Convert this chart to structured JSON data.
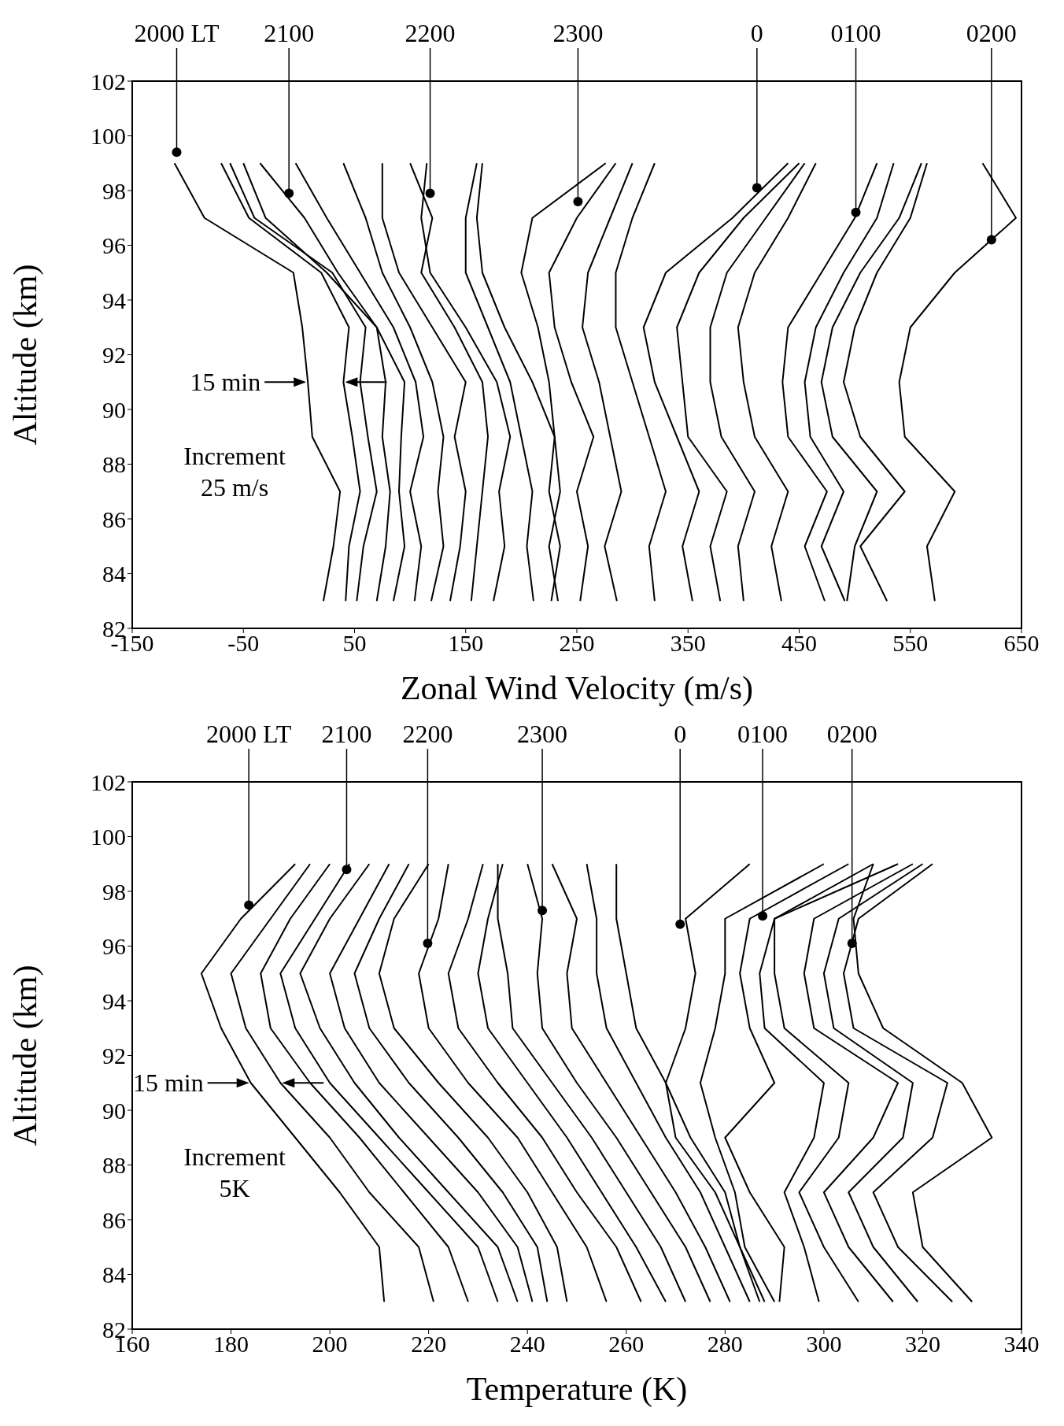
{
  "chart_data": [
    {
      "type": "line",
      "xlabel": "Zonal Wind Velocity (m/s)",
      "ylabel": "Altitude (km)",
      "xlim": [
        -150,
        650
      ],
      "xticks": [
        -150,
        -50,
        50,
        150,
        250,
        350,
        450,
        550,
        650
      ],
      "ylim": [
        82,
        102
      ],
      "yticks": [
        82,
        84,
        86,
        88,
        90,
        92,
        94,
        96,
        98,
        100,
        102
      ],
      "series": [
        {
          "color": "#000000",
          "x": [
            22,
            31,
            37,
            12,
            8,
            3,
            -5,
            -85,
            -112
          ],
          "values": [
            83,
            85,
            87,
            89,
            91,
            93,
            95,
            97,
            99
          ]
        },
        {
          "color": "#000000",
          "x": [
            42,
            45,
            55,
            48,
            40,
            45,
            20,
            -45,
            -70
          ],
          "values": [
            83,
            85,
            87,
            89,
            91,
            93,
            95,
            97,
            99
          ]
        },
        {
          "color": "#000000",
          "x": [
            52,
            58,
            70,
            62,
            55,
            60,
            30,
            -40,
            -62
          ],
          "values": [
            83,
            85,
            87,
            89,
            91,
            93,
            95,
            97,
            99
          ]
        },
        {
          "color": "#000000",
          "x": [
            70,
            78,
            82,
            75,
            78,
            70,
            25,
            -30,
            -50
          ],
          "values": [
            83,
            85,
            87,
            89,
            91,
            93,
            95,
            97,
            99
          ]
        },
        {
          "color": "#000000",
          "x": [
            85,
            95,
            90,
            92,
            95,
            70,
            35,
            5,
            -35
          ],
          "values": [
            83,
            85,
            87,
            89,
            91,
            93,
            95,
            97,
            99
          ]
        },
        {
          "color": "#000000",
          "x": [
            104,
            110,
            100,
            112,
            105,
            85,
            55,
            25,
            -3
          ],
          "values": [
            83,
            85,
            87,
            89,
            91,
            93,
            95,
            97,
            99
          ]
        },
        {
          "color": "#000000",
          "x": [
            119,
            130,
            125,
            130,
            120,
            100,
            75,
            60,
            40
          ],
          "values": [
            83,
            85,
            87,
            89,
            91,
            93,
            95,
            97,
            99
          ]
        },
        {
          "color": "#000000",
          "x": [
            136,
            145,
            150,
            140,
            150,
            120,
            90,
            75,
            75
          ],
          "values": [
            83,
            85,
            87,
            89,
            91,
            93,
            95,
            97,
            99
          ]
        },
        {
          "color": "#000000",
          "x": [
            155,
            160,
            165,
            170,
            165,
            140,
            110,
            120,
            100
          ],
          "values": [
            83,
            85,
            87,
            89,
            91,
            93,
            95,
            97,
            99
          ]
        },
        {
          "color": "#000000",
          "x": [
            175,
            185,
            180,
            190,
            178,
            150,
            118,
            110,
            115
          ],
          "values": [
            83,
            85,
            87,
            89,
            91,
            93,
            95,
            97,
            99
          ]
        },
        {
          "color": "#000000",
          "x": [
            211,
            205,
            210,
            200,
            190,
            170,
            150,
            150,
            160
          ],
          "values": [
            83,
            85,
            87,
            89,
            91,
            93,
            95,
            97,
            99
          ]
        },
        {
          "color": "#000000",
          "x": [
            227,
            235,
            225,
            230,
            210,
            185,
            165,
            160,
            165
          ],
          "values": [
            83,
            85,
            87,
            89,
            91,
            93,
            95,
            97,
            99
          ]
        },
        {
          "color": "#000000",
          "x": [
            233,
            225,
            235,
            230,
            225,
            215,
            200,
            210,
            276
          ],
          "values": [
            83,
            85,
            87,
            89,
            91,
            93,
            95,
            97,
            99
          ]
        },
        {
          "color": "#000000",
          "x": [
            253,
            260,
            250,
            265,
            245,
            230,
            225,
            250,
            285
          ],
          "values": [
            83,
            85,
            87,
            89,
            91,
            93,
            95,
            97,
            99
          ]
        },
        {
          "color": "#000000",
          "x": [
            286,
            275,
            290,
            280,
            270,
            255,
            260,
            280,
            300
          ],
          "values": [
            83,
            85,
            87,
            89,
            91,
            93,
            95,
            97,
            99
          ]
        },
        {
          "color": "#000000",
          "x": [
            320,
            315,
            330,
            315,
            300,
            285,
            285,
            300,
            320
          ],
          "values": [
            83,
            85,
            87,
            89,
            91,
            93,
            95,
            97,
            99
          ]
        },
        {
          "color": "#000000",
          "x": [
            354,
            345,
            360,
            340,
            320,
            310,
            330,
            390,
            440
          ],
          "values": [
            83,
            85,
            87,
            89,
            91,
            93,
            95,
            97,
            99
          ]
        },
        {
          "color": "#000000",
          "x": [
            379,
            370,
            385,
            350,
            345,
            340,
            360,
            400,
            450
          ],
          "values": [
            83,
            85,
            87,
            89,
            91,
            93,
            95,
            97,
            99
          ]
        },
        {
          "color": "#000000",
          "x": [
            400,
            395,
            410,
            380,
            370,
            370,
            385,
            420,
            455
          ],
          "values": [
            83,
            85,
            87,
            89,
            91,
            93,
            95,
            97,
            99
          ]
        },
        {
          "color": "#000000",
          "x": [
            434,
            425,
            440,
            410,
            400,
            395,
            410,
            440,
            465
          ],
          "values": [
            83,
            85,
            87,
            89,
            91,
            93,
            95,
            97,
            99
          ]
        },
        {
          "color": "#000000",
          "x": [
            473,
            455,
            475,
            440,
            435,
            440,
            470,
            500,
            520
          ],
          "values": [
            83,
            85,
            87,
            89,
            91,
            93,
            95,
            97,
            99
          ]
        },
        {
          "color": "#000000",
          "x": [
            491,
            470,
            490,
            460,
            455,
            465,
            490,
            520,
            535
          ],
          "values": [
            83,
            85,
            87,
            89,
            91,
            93,
            95,
            97,
            99
          ]
        },
        {
          "color": "#000000",
          "x": [
            493,
            500,
            520,
            480,
            470,
            480,
            505,
            540,
            560
          ],
          "values": [
            83,
            85,
            87,
            89,
            91,
            93,
            95,
            97,
            99
          ]
        },
        {
          "color": "#000000",
          "x": [
            529,
            505,
            545,
            505,
            490,
            500,
            520,
            550,
            565
          ],
          "values": [
            83,
            85,
            87,
            89,
            91,
            93,
            95,
            97,
            99
          ]
        },
        {
          "color": "#000000",
          "x": [
            572,
            565,
            590,
            545,
            540,
            550,
            590,
            645,
            615
          ],
          "values": [
            83,
            85,
            87,
            89,
            91,
            93,
            95,
            97,
            99
          ]
        }
      ],
      "annotations": [
        {
          "text": "2000 LT",
          "x": -110,
          "y": 99.4
        },
        {
          "text": "2100",
          "x": -9,
          "y": 97.9
        },
        {
          "text": "2200",
          "x": 118,
          "y": 97.9
        },
        {
          "text": "2300",
          "x": 251,
          "y": 97.6
        },
        {
          "text": "0",
          "x": 412,
          "y": 98.1
        },
        {
          "text": "0100",
          "x": 501,
          "y": 97.2
        },
        {
          "text": "0200",
          "x": 623,
          "y": 96.2
        },
        "15 min",
        "Increment 25 m/s"
      ]
    },
    {
      "type": "line",
      "xlabel": "Temperature (K)",
      "ylabel": "Altitude (km)",
      "xlim": [
        160,
        340
      ],
      "xticks": [
        160,
        180,
        200,
        220,
        240,
        260,
        280,
        300,
        320,
        340
      ],
      "ylim": [
        82,
        102
      ],
      "yticks": [
        82,
        84,
        86,
        88,
        90,
        92,
        94,
        96,
        98,
        100,
        102
      ],
      "series": [
        {
          "color": "#000000",
          "x": [
            211,
            210,
            202,
            193,
            184,
            178,
            174,
            182,
            193
          ],
          "values": [
            83,
            85,
            87,
            89,
            91,
            93,
            95,
            97,
            99
          ]
        },
        {
          "color": "#000000",
          "x": [
            221,
            218,
            208,
            200,
            190,
            183,
            180,
            188,
            196
          ],
          "values": [
            83,
            85,
            87,
            89,
            91,
            93,
            95,
            97,
            99
          ]
        },
        {
          "color": "#000000",
          "x": [
            228,
            224,
            215,
            206,
            196,
            188,
            186,
            192,
            200
          ],
          "values": [
            83,
            85,
            87,
            89,
            91,
            93,
            95,
            97,
            99
          ]
        },
        {
          "color": "#000000",
          "x": [
            234,
            230,
            220,
            210,
            200,
            193,
            190,
            197,
            204
          ],
          "values": [
            83,
            85,
            87,
            89,
            91,
            93,
            95,
            97,
            99
          ]
        },
        {
          "color": "#000000",
          "x": [
            238,
            234,
            224,
            214,
            205,
            198,
            194,
            200,
            208
          ],
          "values": [
            83,
            85,
            87,
            89,
            91,
            93,
            95,
            97,
            99
          ]
        },
        {
          "color": "#000000",
          "x": [
            241,
            238,
            230,
            220,
            210,
            203,
            200,
            206,
            212
          ],
          "values": [
            83,
            85,
            87,
            89,
            91,
            93,
            95,
            97,
            99
          ]
        },
        {
          "color": "#000000",
          "x": [
            244,
            242,
            235,
            226,
            216,
            208,
            205,
            210,
            216
          ],
          "values": [
            83,
            85,
            87,
            89,
            91,
            93,
            95,
            97,
            99
          ]
        },
        {
          "color": "#000000",
          "x": [
            248,
            246,
            240,
            232,
            222,
            213,
            210,
            213,
            220
          ],
          "values": [
            83,
            85,
            87,
            89,
            91,
            93,
            95,
            97,
            99
          ]
        },
        {
          "color": "#000000",
          "x": [
            256,
            252,
            245,
            238,
            228,
            220,
            218,
            222,
            224
          ],
          "values": [
            83,
            85,
            87,
            89,
            91,
            93,
            95,
            97,
            99
          ]
        },
        {
          "color": "#000000",
          "x": [
            263,
            258,
            250,
            243,
            234,
            226,
            224,
            228,
            231
          ],
          "values": [
            83,
            85,
            87,
            89,
            91,
            93,
            95,
            97,
            99
          ]
        },
        {
          "color": "#000000",
          "x": [
            268,
            262,
            255,
            248,
            240,
            232,
            230,
            232,
            235
          ],
          "values": [
            83,
            85,
            87,
            89,
            91,
            93,
            95,
            97,
            99
          ]
        },
        {
          "color": "#000000",
          "x": [
            272,
            267,
            260,
            253,
            245,
            237,
            236,
            234,
            234
          ],
          "values": [
            83,
            85,
            87,
            89,
            91,
            93,
            95,
            97,
            99
          ]
        },
        {
          "color": "#000000",
          "x": [
            277,
            272,
            265,
            258,
            250,
            243,
            242,
            243,
            240
          ],
          "values": [
            83,
            85,
            87,
            89,
            91,
            93,
            95,
            97,
            99
          ]
        },
        {
          "color": "#000000",
          "x": [
            281,
            276,
            270,
            263,
            256,
            249,
            248,
            250,
            245
          ],
          "values": [
            83,
            85,
            87,
            89,
            91,
            93,
            95,
            97,
            99
          ]
        },
        {
          "color": "#000000",
          "x": [
            285,
            280,
            275,
            268,
            262,
            256,
            254,
            254,
            252
          ],
          "values": [
            83,
            85,
            87,
            89,
            91,
            93,
            95,
            97,
            99
          ]
        },
        {
          "color": "#000000",
          "x": [
            287,
            283,
            280,
            273,
            268,
            262,
            260,
            258,
            258
          ],
          "values": [
            83,
            85,
            87,
            89,
            91,
            93,
            95,
            97,
            99
          ]
        },
        {
          "color": "#000000",
          "x": [
            288,
            283,
            278,
            270,
            268,
            272,
            274,
            272,
            285
          ],
          "values": [
            83,
            85,
            87,
            89,
            91,
            93,
            95,
            97,
            99
          ]
        },
        {
          "color": "#000000",
          "x": [
            290,
            284,
            282,
            278,
            275,
            278,
            280,
            280,
            300
          ],
          "values": [
            83,
            85,
            87,
            89,
            91,
            93,
            95,
            97,
            99
          ]
        },
        {
          "color": "#000000",
          "x": [
            291,
            292,
            285,
            280,
            290,
            285,
            283,
            285,
            305
          ],
          "values": [
            83,
            85,
            87,
            89,
            91,
            93,
            95,
            97,
            99
          ]
        },
        {
          "color": "#000000",
          "x": [
            299,
            296,
            292,
            298,
            300,
            288,
            287,
            290,
            310
          ],
          "values": [
            83,
            85,
            87,
            89,
            91,
            93,
            95,
            97,
            99
          ]
        },
        {
          "color": "#000000",
          "x": [
            307,
            300,
            295,
            303,
            305,
            292,
            290,
            290,
            315
          ],
          "values": [
            83,
            85,
            87,
            89,
            91,
            93,
            95,
            97,
            99
          ]
        },
        {
          "color": "#000000",
          "x": [
            314,
            305,
            300,
            310,
            315,
            298,
            296,
            298,
            318
          ],
          "values": [
            83,
            85,
            87,
            89,
            91,
            93,
            95,
            97,
            99
          ]
        },
        {
          "color": "#000000",
          "x": [
            319,
            310,
            305,
            316,
            318,
            302,
            300,
            303,
            320
          ],
          "values": [
            83,
            85,
            87,
            89,
            91,
            93,
            95,
            97,
            99
          ]
        },
        {
          "color": "#000000",
          "x": [
            326,
            315,
            310,
            322,
            325,
            306,
            304,
            307,
            322
          ],
          "values": [
            83,
            85,
            87,
            89,
            91,
            93,
            95,
            97,
            99
          ]
        },
        {
          "color": "#000000",
          "x": [
            330,
            320,
            318,
            334,
            328,
            312,
            307,
            306,
            310
          ],
          "values": [
            83,
            85,
            87,
            89,
            91,
            93,
            95,
            97,
            99
          ]
        }
      ],
      "annotations": [
        {
          "text": "2000 LT",
          "x": 183.6,
          "y": 97.5
        },
        {
          "text": "2100",
          "x": 203.4,
          "y": 98.8
        },
        {
          "text": "2200",
          "x": 219.8,
          "y": 96.1
        },
        {
          "text": "2300",
          "x": 243,
          "y": 97.3
        },
        {
          "text": "0",
          "x": 270.9,
          "y": 96.8
        },
        {
          "text": "0100",
          "x": 287.6,
          "y": 97.1
        },
        {
          "text": "0200",
          "x": 305.7,
          "y": 96.1
        },
        "15 min",
        "Increment 5K"
      ]
    }
  ]
}
